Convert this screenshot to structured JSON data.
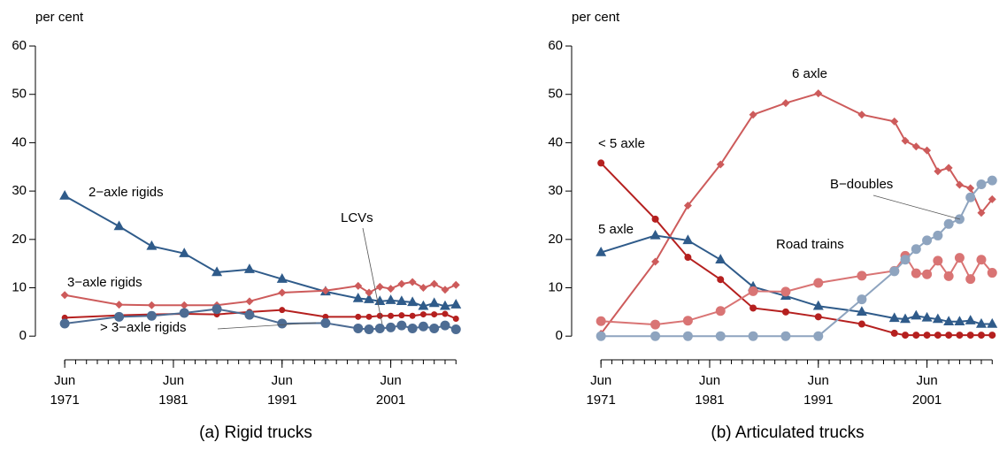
{
  "chart_data": [
    {
      "type": "line",
      "ylabel": "per cent",
      "caption": "(a) Rigid trucks",
      "x": [
        1971,
        1976,
        1979,
        1982,
        1985,
        1988,
        1991,
        1995,
        1998,
        1999,
        2000,
        2001,
        2002,
        2003,
        2004,
        2005,
        2006,
        2007
      ],
      "xlim": [
        1968.3,
        2008.2
      ],
      "ylim": [
        -4.9,
        62.2
      ],
      "xticks": [
        {
          "value": 1971,
          "label": "Jun 1971"
        },
        {
          "value": 1981,
          "label": "Jun 1981"
        },
        {
          "value": 1991,
          "label": "Jun 1991"
        },
        {
          "value": 2001,
          "label": "Jun 2001"
        }
      ],
      "xminorticks": [
        1971,
        1972,
        1973,
        1974,
        1975,
        1976,
        1977,
        1978,
        1979,
        1980,
        1981,
        1982,
        1983,
        1984,
        1985,
        1986,
        1987,
        1988,
        1989,
        1990,
        1991,
        1992,
        1993,
        1994,
        1995,
        1996,
        1997,
        1998,
        1999,
        2000,
        2001,
        2002,
        2003,
        2004,
        2005,
        2006,
        2007
      ],
      "yticks": [
        0,
        10,
        20,
        30,
        40,
        50,
        60
      ],
      "series": [
        {
          "name": "2−axle rigids",
          "color": "#2f5b8a",
          "marker": "triangle",
          "marker_size": 6,
          "values": [
            29,
            22.7,
            18.6,
            17.1,
            13.2,
            13.8,
            11.8,
            9.2,
            7.8,
            7.6,
            7.2,
            7.4,
            7.2,
            7,
            6.2,
            6.8,
            6.2,
            6.5
          ]
        },
        {
          "name": "3−axle rigids",
          "color": "#cd5b5b",
          "marker": "diamond",
          "marker_size": 4.5,
          "values": [
            8.5,
            6.5,
            6.4,
            6.4,
            6.4,
            7.2,
            9,
            9.4,
            10.4,
            9,
            10.2,
            9.8,
            10.8,
            11.2,
            10,
            10.8,
            9.6,
            10.6
          ]
        },
        {
          "name": "LCVs",
          "color": "#b5201f",
          "marker": "circle",
          "marker_size": 3.5,
          "values": [
            3.8,
            4.3,
            4.5,
            4.6,
            4.5,
            5,
            5.4,
            4,
            4,
            4,
            4.2,
            4.2,
            4.3,
            4.2,
            4.5,
            4.5,
            4.6,
            3.6
          ]
        },
        {
          "name": "> 3−axle rigids",
          "color": "#4d6c93",
          "marker": "circle",
          "marker_size": 5.5,
          "values": [
            2.6,
            4,
            4.2,
            4.8,
            5.6,
            4.4,
            2.6,
            2.7,
            1.6,
            1.4,
            1.6,
            1.8,
            2.2,
            1.6,
            2,
            1.6,
            2.2,
            1.4
          ]
        }
      ]
    },
    {
      "type": "line",
      "ylabel": "per cent",
      "caption": "(b) Articulated trucks",
      "x": [
        1971,
        1976,
        1979,
        1982,
        1985,
        1988,
        1991,
        1995,
        1998,
        1999,
        2000,
        2001,
        2002,
        2003,
        2004,
        2005,
        2006,
        2007
      ],
      "xlim": [
        1968.3,
        2008.2
      ],
      "ylim": [
        -4.9,
        62.2
      ],
      "xticks": [
        {
          "value": 1971,
          "label": "Jun 1971"
        },
        {
          "value": 1981,
          "label": "Jun 1981"
        },
        {
          "value": 1991,
          "label": "Jun 1991"
        },
        {
          "value": 2001,
          "label": "Jun 2001"
        }
      ],
      "xminorticks": [
        1971,
        1972,
        1973,
        1974,
        1975,
        1976,
        1977,
        1978,
        1979,
        1980,
        1981,
        1982,
        1983,
        1984,
        1985,
        1986,
        1987,
        1988,
        1989,
        1990,
        1991,
        1992,
        1993,
        1994,
        1995,
        1996,
        1997,
        1998,
        1999,
        2000,
        2001,
        2002,
        2003,
        2004,
        2005,
        2006,
        2007
      ],
      "yticks": [
        0,
        10,
        20,
        30,
        40,
        50,
        60
      ],
      "series": [
        {
          "name": "< 5 axle",
          "color": "#b5201f",
          "marker": "circle",
          "marker_size": 4,
          "values": [
            35.8,
            24.2,
            16.3,
            11.7,
            5.8,
            5,
            4,
            2.5,
            0.6,
            0.2,
            0.2,
            0.2,
            0.2,
            0.2,
            0.2,
            0.2,
            0.2,
            0.2
          ]
        },
        {
          "name": "6 axle",
          "color": "#cd5b5b",
          "marker": "diamond",
          "marker_size": 4.5,
          "values": [
            0.5,
            15.4,
            27,
            35.5,
            45.8,
            48.2,
            50.2,
            45.8,
            44.4,
            40.4,
            39.2,
            38.4,
            34.1,
            34.8,
            31.3,
            30.6,
            25.5,
            28.3
          ]
        },
        {
          "name": "5 axle",
          "color": "#2f5b8a",
          "marker": "triangle",
          "marker_size": 6,
          "values": [
            17.3,
            20.8,
            19.8,
            15.8,
            10.2,
            8.3,
            6.2,
            5,
            3.7,
            3.5,
            4.2,
            3.8,
            3.5,
            3,
            3,
            3.2,
            2.5,
            2.5
          ]
        },
        {
          "name": "Road trains",
          "color": "#d97474",
          "marker": "circle",
          "marker_size": 5.5,
          "values": [
            3.1,
            2.4,
            3.2,
            5.2,
            9.3,
            9.2,
            11,
            12.5,
            13.5,
            16.6,
            13,
            12.8,
            15.6,
            12.4,
            16.2,
            11.8,
            15.8,
            13.1
          ]
        },
        {
          "name": "B−doubles",
          "color": "#8ea4bf",
          "marker": "circle",
          "marker_size": 5.5,
          "values": [
            0,
            0,
            0,
            0,
            0,
            0,
            0,
            7.6,
            13.4,
            15.8,
            18,
            19.8,
            20.8,
            23.2,
            24.2,
            28.7,
            31.4,
            32.2
          ]
        }
      ]
    }
  ]
}
